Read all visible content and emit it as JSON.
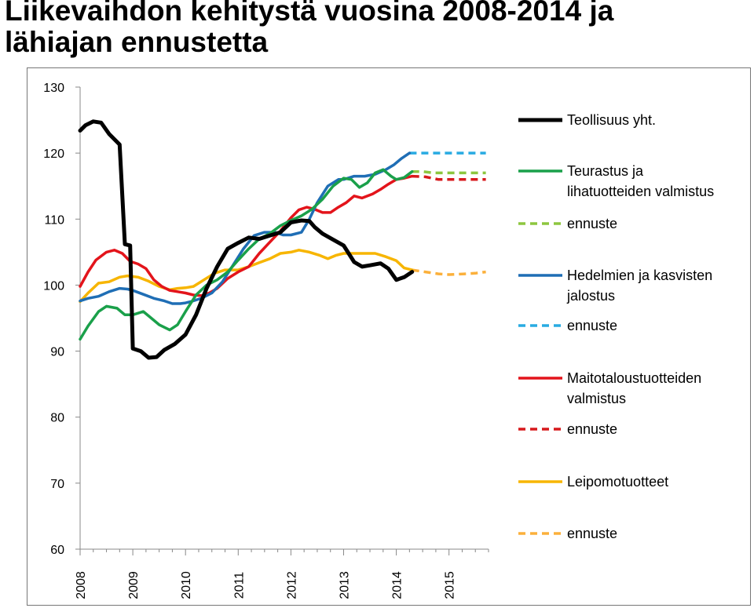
{
  "title_lines": [
    "Liikevaihdon kehitystä vuosina 2008-2014 ja",
    "lähiajan ennustetta"
  ],
  "chart_data": {
    "type": "line",
    "title": "Liikevaihdon kehitystä vuosina 2008-2014 ja lähiajan ennustetta",
    "xlabel": "",
    "ylabel": "",
    "ylim": [
      60,
      130
    ],
    "xlim": [
      2008,
      2015.75
    ],
    "y_ticks": [
      60,
      70,
      80,
      90,
      100,
      110,
      120,
      130
    ],
    "x_ticks": [
      "2008",
      "2009",
      "2010",
      "2011",
      "2012",
      "2013",
      "2014",
      "2015"
    ],
    "grid": false,
    "legend_position": "right",
    "series": [
      {
        "name": "Teollisuus yht.",
        "color": "#000000",
        "dash": false,
        "legend_lines": [
          "Teollisuus yht."
        ],
        "points": [
          [
            2008.0,
            123.4
          ],
          [
            2008.1,
            124.2
          ],
          [
            2008.25,
            124.8
          ],
          [
            2008.4,
            124.6
          ],
          [
            2008.55,
            122.9
          ],
          [
            2008.75,
            121.3
          ],
          [
            2008.85,
            106.2
          ],
          [
            2008.95,
            106.0
          ],
          [
            2009.0,
            90.4
          ],
          [
            2009.15,
            90.0
          ],
          [
            2009.3,
            89.0
          ],
          [
            2009.45,
            89.1
          ],
          [
            2009.6,
            90.2
          ],
          [
            2009.8,
            91.1
          ],
          [
            2010.0,
            92.5
          ],
          [
            2010.2,
            95.5
          ],
          [
            2010.4,
            99.5
          ],
          [
            2010.6,
            102.8
          ],
          [
            2010.8,
            105.5
          ],
          [
            2011.0,
            106.4
          ],
          [
            2011.2,
            107.2
          ],
          [
            2011.4,
            107.0
          ],
          [
            2011.6,
            107.5
          ],
          [
            2011.8,
            108.0
          ],
          [
            2012.0,
            109.5
          ],
          [
            2012.2,
            109.8
          ],
          [
            2012.35,
            109.7
          ],
          [
            2012.45,
            108.8
          ],
          [
            2012.6,
            107.8
          ],
          [
            2012.8,
            106.9
          ],
          [
            2013.0,
            106.0
          ],
          [
            2013.2,
            103.5
          ],
          [
            2013.35,
            102.8
          ],
          [
            2013.5,
            103.0
          ],
          [
            2013.7,
            103.3
          ],
          [
            2013.85,
            102.5
          ],
          [
            2014.0,
            100.8
          ],
          [
            2014.15,
            101.2
          ],
          [
            2014.3,
            102.0
          ]
        ]
      },
      {
        "name": "Teurastus ja lihatuotteiden valmistus",
        "color": "#1aa04a",
        "dash": false,
        "legend_lines": [
          "Teurastus ja",
          "lihatuotteiden valmistus"
        ],
        "points": [
          [
            2008.0,
            91.8
          ],
          [
            2008.15,
            93.8
          ],
          [
            2008.35,
            96.0
          ],
          [
            2008.5,
            96.8
          ],
          [
            2008.7,
            96.5
          ],
          [
            2008.85,
            95.5
          ],
          [
            2009.0,
            95.5
          ],
          [
            2009.2,
            96.0
          ],
          [
            2009.35,
            95.0
          ],
          [
            2009.5,
            94.0
          ],
          [
            2009.7,
            93.2
          ],
          [
            2009.85,
            94.0
          ],
          [
            2010.0,
            96.0
          ],
          [
            2010.2,
            98.5
          ],
          [
            2010.4,
            100.0
          ],
          [
            2010.6,
            100.8
          ],
          [
            2010.8,
            102.0
          ],
          [
            2011.0,
            103.8
          ],
          [
            2011.2,
            105.5
          ],
          [
            2011.4,
            107.0
          ],
          [
            2011.6,
            107.8
          ],
          [
            2011.8,
            109.0
          ],
          [
            2012.0,
            109.8
          ],
          [
            2012.2,
            110.5
          ],
          [
            2012.4,
            111.5
          ],
          [
            2012.6,
            113.0
          ],
          [
            2012.8,
            115.0
          ],
          [
            2013.0,
            116.2
          ],
          [
            2013.15,
            116.0
          ],
          [
            2013.3,
            114.8
          ],
          [
            2013.45,
            115.5
          ],
          [
            2013.6,
            117.0
          ],
          [
            2013.75,
            117.5
          ],
          [
            2013.9,
            116.5
          ],
          [
            2014.0,
            116.0
          ],
          [
            2014.15,
            116.3
          ],
          [
            2014.3,
            117.2
          ]
        ]
      },
      {
        "name": "ennuste",
        "color": "#8dc63f",
        "dash": true,
        "legend_lines": [
          "ennuste"
        ],
        "points": [
          [
            2014.3,
            117.2
          ],
          [
            2014.5,
            117.2
          ],
          [
            2014.7,
            117.0
          ],
          [
            2015.0,
            117.0
          ],
          [
            2015.3,
            117.0
          ],
          [
            2015.7,
            117.0
          ]
        ]
      },
      {
        "name": "Hedelmien ja kasvisten jalostus",
        "color": "#1f6eb5",
        "dash": false,
        "legend_lines": [
          "Hedelmien ja kasvisten",
          "jalostus"
        ],
        "points": [
          [
            2008.0,
            97.6
          ],
          [
            2008.15,
            98.0
          ],
          [
            2008.35,
            98.3
          ],
          [
            2008.55,
            99.0
          ],
          [
            2008.75,
            99.5
          ],
          [
            2008.9,
            99.4
          ],
          [
            2009.0,
            99.2
          ],
          [
            2009.2,
            98.6
          ],
          [
            2009.4,
            98.0
          ],
          [
            2009.6,
            97.6
          ],
          [
            2009.75,
            97.2
          ],
          [
            2009.9,
            97.2
          ],
          [
            2010.0,
            97.3
          ],
          [
            2010.1,
            97.5
          ],
          [
            2010.3,
            98.0
          ],
          [
            2010.5,
            98.8
          ],
          [
            2010.7,
            100.5
          ],
          [
            2010.9,
            103.0
          ],
          [
            2011.1,
            105.5
          ],
          [
            2011.3,
            107.5
          ],
          [
            2011.5,
            108.0
          ],
          [
            2011.7,
            108.0
          ],
          [
            2011.85,
            107.6
          ],
          [
            2012.0,
            107.6
          ],
          [
            2012.2,
            108.0
          ],
          [
            2012.35,
            110.0
          ],
          [
            2012.5,
            112.5
          ],
          [
            2012.7,
            115.0
          ],
          [
            2012.9,
            116.0
          ],
          [
            2013.0,
            116.0
          ],
          [
            2013.2,
            116.5
          ],
          [
            2013.4,
            116.5
          ],
          [
            2013.6,
            116.8
          ],
          [
            2013.8,
            117.5
          ],
          [
            2013.95,
            118.2
          ],
          [
            2014.1,
            119.2
          ],
          [
            2014.25,
            120.0
          ]
        ]
      },
      {
        "name": "ennuste",
        "color": "#29abe2",
        "dash": true,
        "legend_lines": [
          "ennuste"
        ],
        "points": [
          [
            2014.25,
            120.0
          ],
          [
            2014.5,
            120.0
          ],
          [
            2014.8,
            120.0
          ],
          [
            2015.1,
            120.0
          ],
          [
            2015.4,
            120.0
          ],
          [
            2015.7,
            120.0
          ]
        ]
      },
      {
        "name": "Maitotaloustuotteiden valmistus",
        "color": "#e3141b",
        "dash": false,
        "legend_lines": [
          "Maitotaloustuotteiden",
          "valmistus"
        ],
        "points": [
          [
            2008.0,
            99.8
          ],
          [
            2008.15,
            102.0
          ],
          [
            2008.3,
            103.8
          ],
          [
            2008.5,
            105.0
          ],
          [
            2008.65,
            105.3
          ],
          [
            2008.8,
            104.8
          ],
          [
            2008.95,
            103.6
          ],
          [
            2009.1,
            103.2
          ],
          [
            2009.25,
            102.5
          ],
          [
            2009.4,
            100.8
          ],
          [
            2009.55,
            99.8
          ],
          [
            2009.7,
            99.2
          ],
          [
            2009.85,
            99.0
          ],
          [
            2010.0,
            98.8
          ],
          [
            2010.15,
            98.5
          ],
          [
            2010.3,
            98.4
          ],
          [
            2010.45,
            98.8
          ],
          [
            2010.6,
            99.5
          ],
          [
            2010.8,
            101.0
          ],
          [
            2011.0,
            102.0
          ],
          [
            2011.2,
            102.8
          ],
          [
            2011.4,
            104.8
          ],
          [
            2011.6,
            106.5
          ],
          [
            2011.8,
            108.2
          ],
          [
            2012.0,
            110.2
          ],
          [
            2012.15,
            111.4
          ],
          [
            2012.3,
            111.8
          ],
          [
            2012.45,
            111.5
          ],
          [
            2012.6,
            111.0
          ],
          [
            2012.75,
            111.0
          ],
          [
            2012.9,
            111.8
          ],
          [
            2013.05,
            112.5
          ],
          [
            2013.2,
            113.5
          ],
          [
            2013.35,
            113.2
          ],
          [
            2013.55,
            113.8
          ],
          [
            2013.7,
            114.5
          ],
          [
            2013.85,
            115.3
          ],
          [
            2014.0,
            116.0
          ],
          [
            2014.15,
            116.2
          ],
          [
            2014.3,
            116.5
          ]
        ]
      },
      {
        "name": "ennuste",
        "color": "#d7191c",
        "dash": true,
        "legend_lines": [
          "ennuste"
        ],
        "points": [
          [
            2014.3,
            116.5
          ],
          [
            2014.55,
            116.4
          ],
          [
            2014.8,
            116.0
          ],
          [
            2015.1,
            116.0
          ],
          [
            2015.4,
            116.0
          ],
          [
            2015.7,
            116.0
          ]
        ]
      },
      {
        "name": "Leipomotuotteet",
        "color": "#f7b500",
        "dash": false,
        "legend_lines": [
          "Leipomotuotteet"
        ],
        "points": [
          [
            2008.0,
            97.5
          ],
          [
            2008.15,
            98.8
          ],
          [
            2008.35,
            100.3
          ],
          [
            2008.55,
            100.5
          ],
          [
            2008.75,
            101.2
          ],
          [
            2008.9,
            101.4
          ],
          [
            2009.1,
            101.2
          ],
          [
            2009.3,
            100.6
          ],
          [
            2009.5,
            99.8
          ],
          [
            2009.7,
            99.3
          ],
          [
            2009.85,
            99.5
          ],
          [
            2010.0,
            99.6
          ],
          [
            2010.15,
            99.8
          ],
          [
            2010.35,
            100.8
          ],
          [
            2010.55,
            101.8
          ],
          [
            2010.75,
            102.3
          ],
          [
            2011.0,
            102.3
          ],
          [
            2011.2,
            102.8
          ],
          [
            2011.4,
            103.4
          ],
          [
            2011.6,
            104.0
          ],
          [
            2011.8,
            104.8
          ],
          [
            2012.0,
            105.0
          ],
          [
            2012.15,
            105.3
          ],
          [
            2012.35,
            105.0
          ],
          [
            2012.55,
            104.5
          ],
          [
            2012.7,
            104.0
          ],
          [
            2012.85,
            104.5
          ],
          [
            2013.0,
            104.8
          ],
          [
            2013.2,
            104.8
          ],
          [
            2013.4,
            104.8
          ],
          [
            2013.6,
            104.8
          ],
          [
            2013.8,
            104.3
          ],
          [
            2014.0,
            103.7
          ],
          [
            2014.15,
            102.6
          ],
          [
            2014.3,
            102.3
          ]
        ]
      },
      {
        "name": "ennuste",
        "color": "#fbb03b",
        "dash": true,
        "legend_lines": [
          "ennuste"
        ],
        "points": [
          [
            2014.3,
            102.3
          ],
          [
            2014.55,
            102.0
          ],
          [
            2014.8,
            101.7
          ],
          [
            2015.0,
            101.6
          ],
          [
            2015.3,
            101.7
          ],
          [
            2015.5,
            101.8
          ],
          [
            2015.7,
            102.0
          ]
        ]
      }
    ]
  }
}
